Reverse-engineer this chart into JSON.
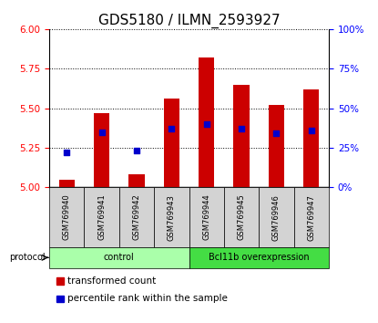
{
  "title": "GDS5180 / ILMN_2593927",
  "samples": [
    "GSM769940",
    "GSM769941",
    "GSM769942",
    "GSM769943",
    "GSM769944",
    "GSM769945",
    "GSM769946",
    "GSM769947"
  ],
  "transformed_counts": [
    5.05,
    5.47,
    5.08,
    5.56,
    5.82,
    5.65,
    5.52,
    5.62
  ],
  "percentile_ranks": [
    22,
    35,
    23,
    37,
    40,
    37,
    34,
    36
  ],
  "ylim_left": [
    5.0,
    6.0
  ],
  "yticks_left": [
    5.0,
    5.25,
    5.5,
    5.75,
    6.0
  ],
  "ylim_right": [
    0,
    100
  ],
  "yticks_right": [
    0,
    25,
    50,
    75,
    100
  ],
  "bar_color": "#cc0000",
  "marker_color": "#0000cc",
  "bar_width": 0.45,
  "groups": [
    {
      "label": "control",
      "start": 0,
      "end": 3,
      "color": "#aaffaa"
    },
    {
      "label": "Bcl11b overexpression",
      "start": 4,
      "end": 7,
      "color": "#44dd44"
    }
  ],
  "protocol_label": "protocol",
  "legend_items": [
    {
      "color": "#cc0000",
      "label": "transformed count"
    },
    {
      "color": "#0000cc",
      "label": "percentile rank within the sample"
    }
  ],
  "title_fontsize": 11,
  "tick_fontsize": 7.5,
  "sample_fontsize": 6,
  "group_fontsize": 7,
  "legend_fontsize": 7.5
}
